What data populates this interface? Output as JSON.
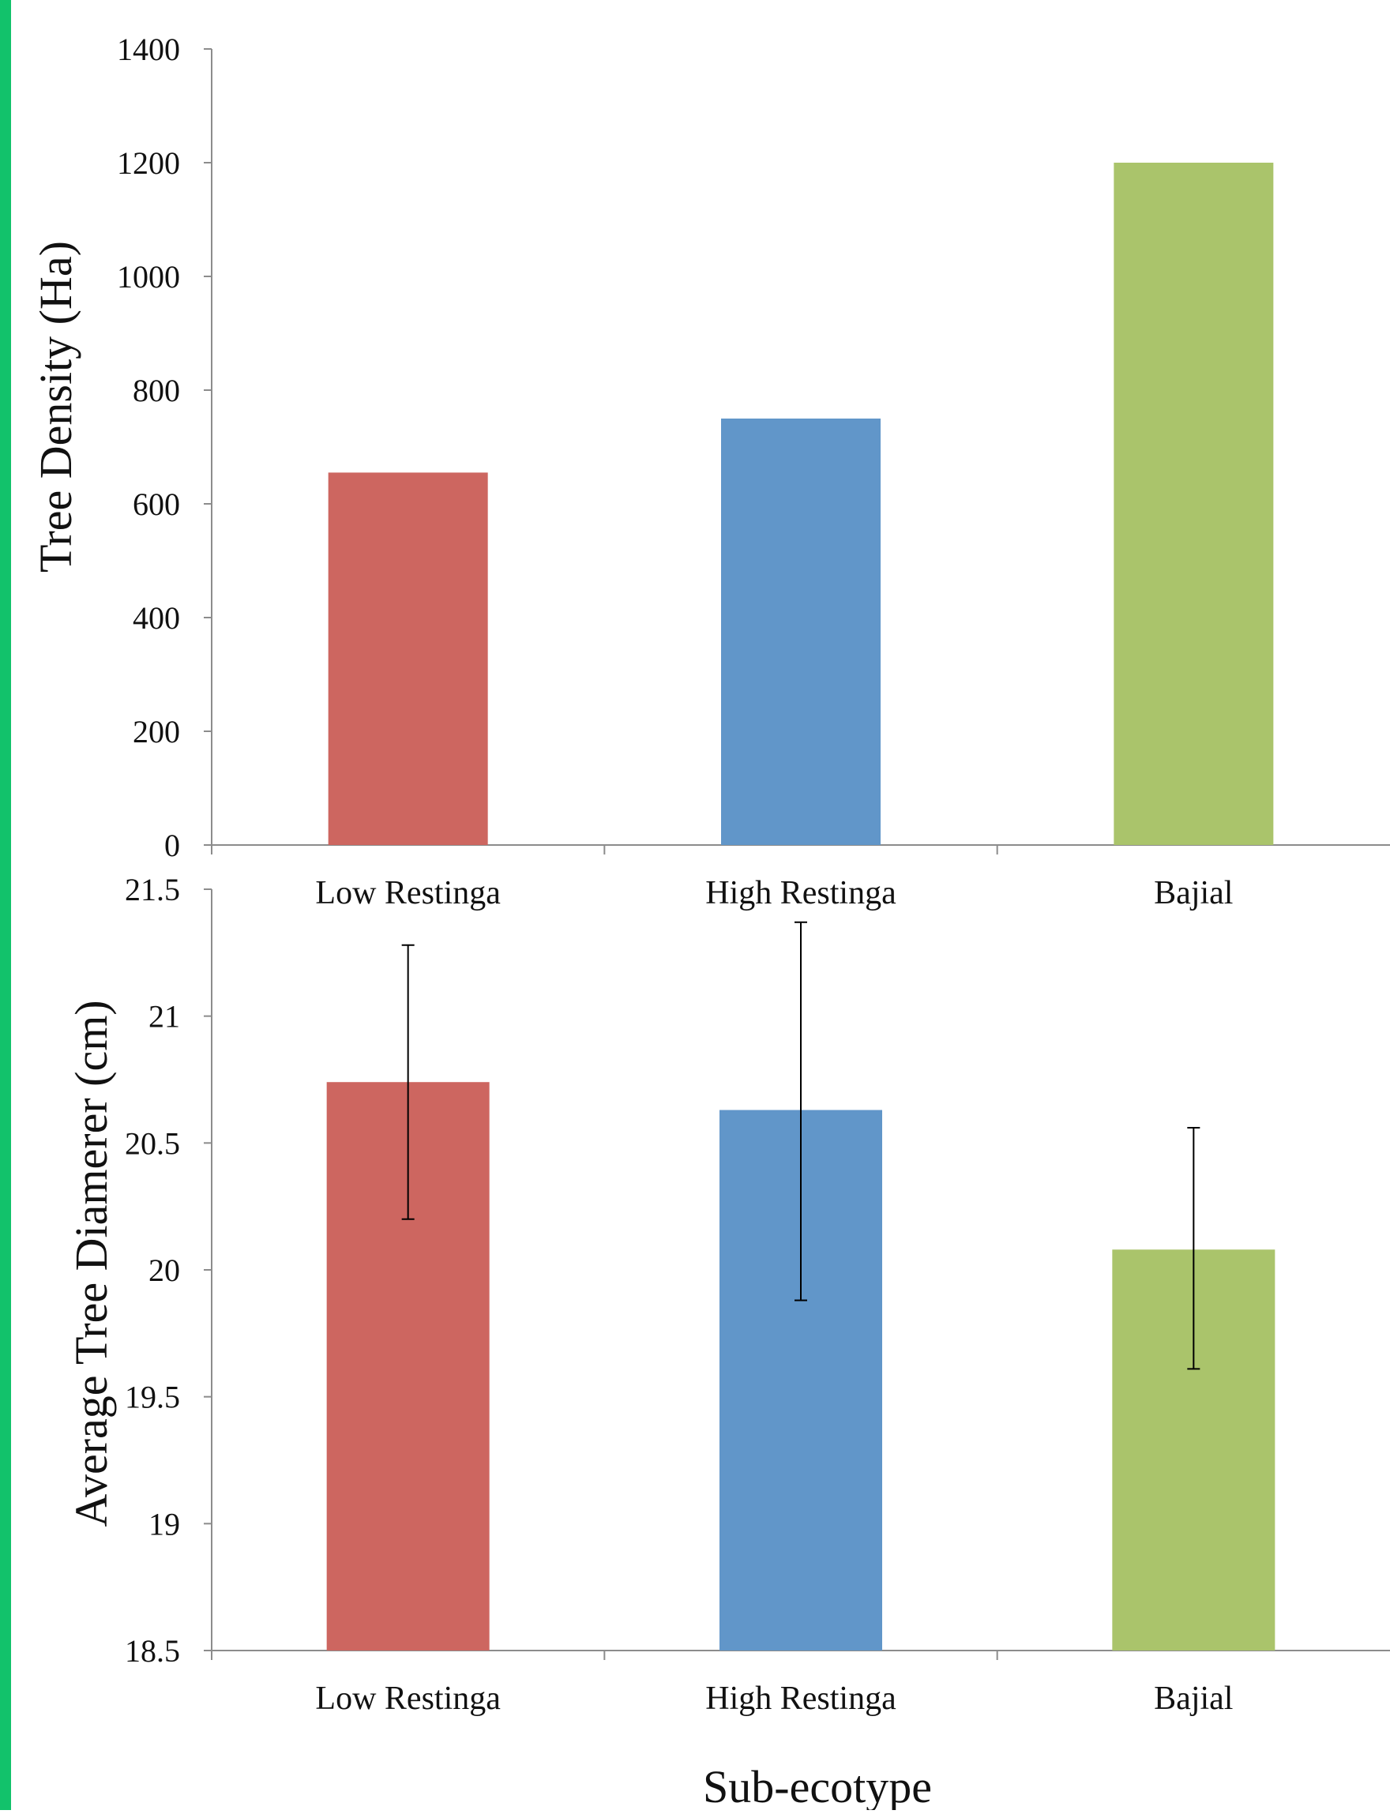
{
  "theme": {
    "accent_strip": "#12c26b",
    "axis_color": "#8c8c8c",
    "errorbar_color": "#000000"
  },
  "x_axis_title": "Sub-ecotype",
  "chart_data": [
    {
      "type": "bar",
      "categories": [
        "Low Restinga",
        "High Restinga",
        "Bajial"
      ],
      "values": [
        655,
        750,
        1200
      ],
      "colors": [
        "#cd6660",
        "#6196c9",
        "#aac46b"
      ],
      "ylabel": "Tree Density (Ha)",
      "ylim": [
        0,
        1400
      ],
      "yticks": [
        {
          "value": 0,
          "label": "0"
        },
        {
          "value": 200,
          "label": "200"
        },
        {
          "value": 400,
          "label": "400"
        },
        {
          "value": 600,
          "label": "600"
        },
        {
          "value": 800,
          "label": "800"
        },
        {
          "value": 1000,
          "label": "1000"
        },
        {
          "value": 1200,
          "label": "1200"
        },
        {
          "value": 1400,
          "label": "1400"
        }
      ],
      "grid": false
    },
    {
      "type": "bar",
      "categories": [
        "Low Restinga",
        "High Restinga",
        "Bajial"
      ],
      "values": [
        20.74,
        20.63,
        20.08
      ],
      "error_low": [
        20.2,
        19.88,
        19.61
      ],
      "error_high": [
        21.28,
        21.37,
        20.56
      ],
      "colors": [
        "#cd6660",
        "#6196c9",
        "#aac46b"
      ],
      "ylabel": "Average Tree Diamerer (cm)",
      "xlabel": "Sub-ecotype",
      "ylim": [
        18.5,
        21.5
      ],
      "yticks": [
        {
          "value": 18.5,
          "label": "18.5"
        },
        {
          "value": 19,
          "label": "19"
        },
        {
          "value": 19.5,
          "label": "19.5"
        },
        {
          "value": 20,
          "label": "20"
        },
        {
          "value": 20.5,
          "label": "20.5"
        },
        {
          "value": 21,
          "label": "21"
        },
        {
          "value": 21.5,
          "label": "21.5"
        }
      ],
      "grid": false
    }
  ]
}
